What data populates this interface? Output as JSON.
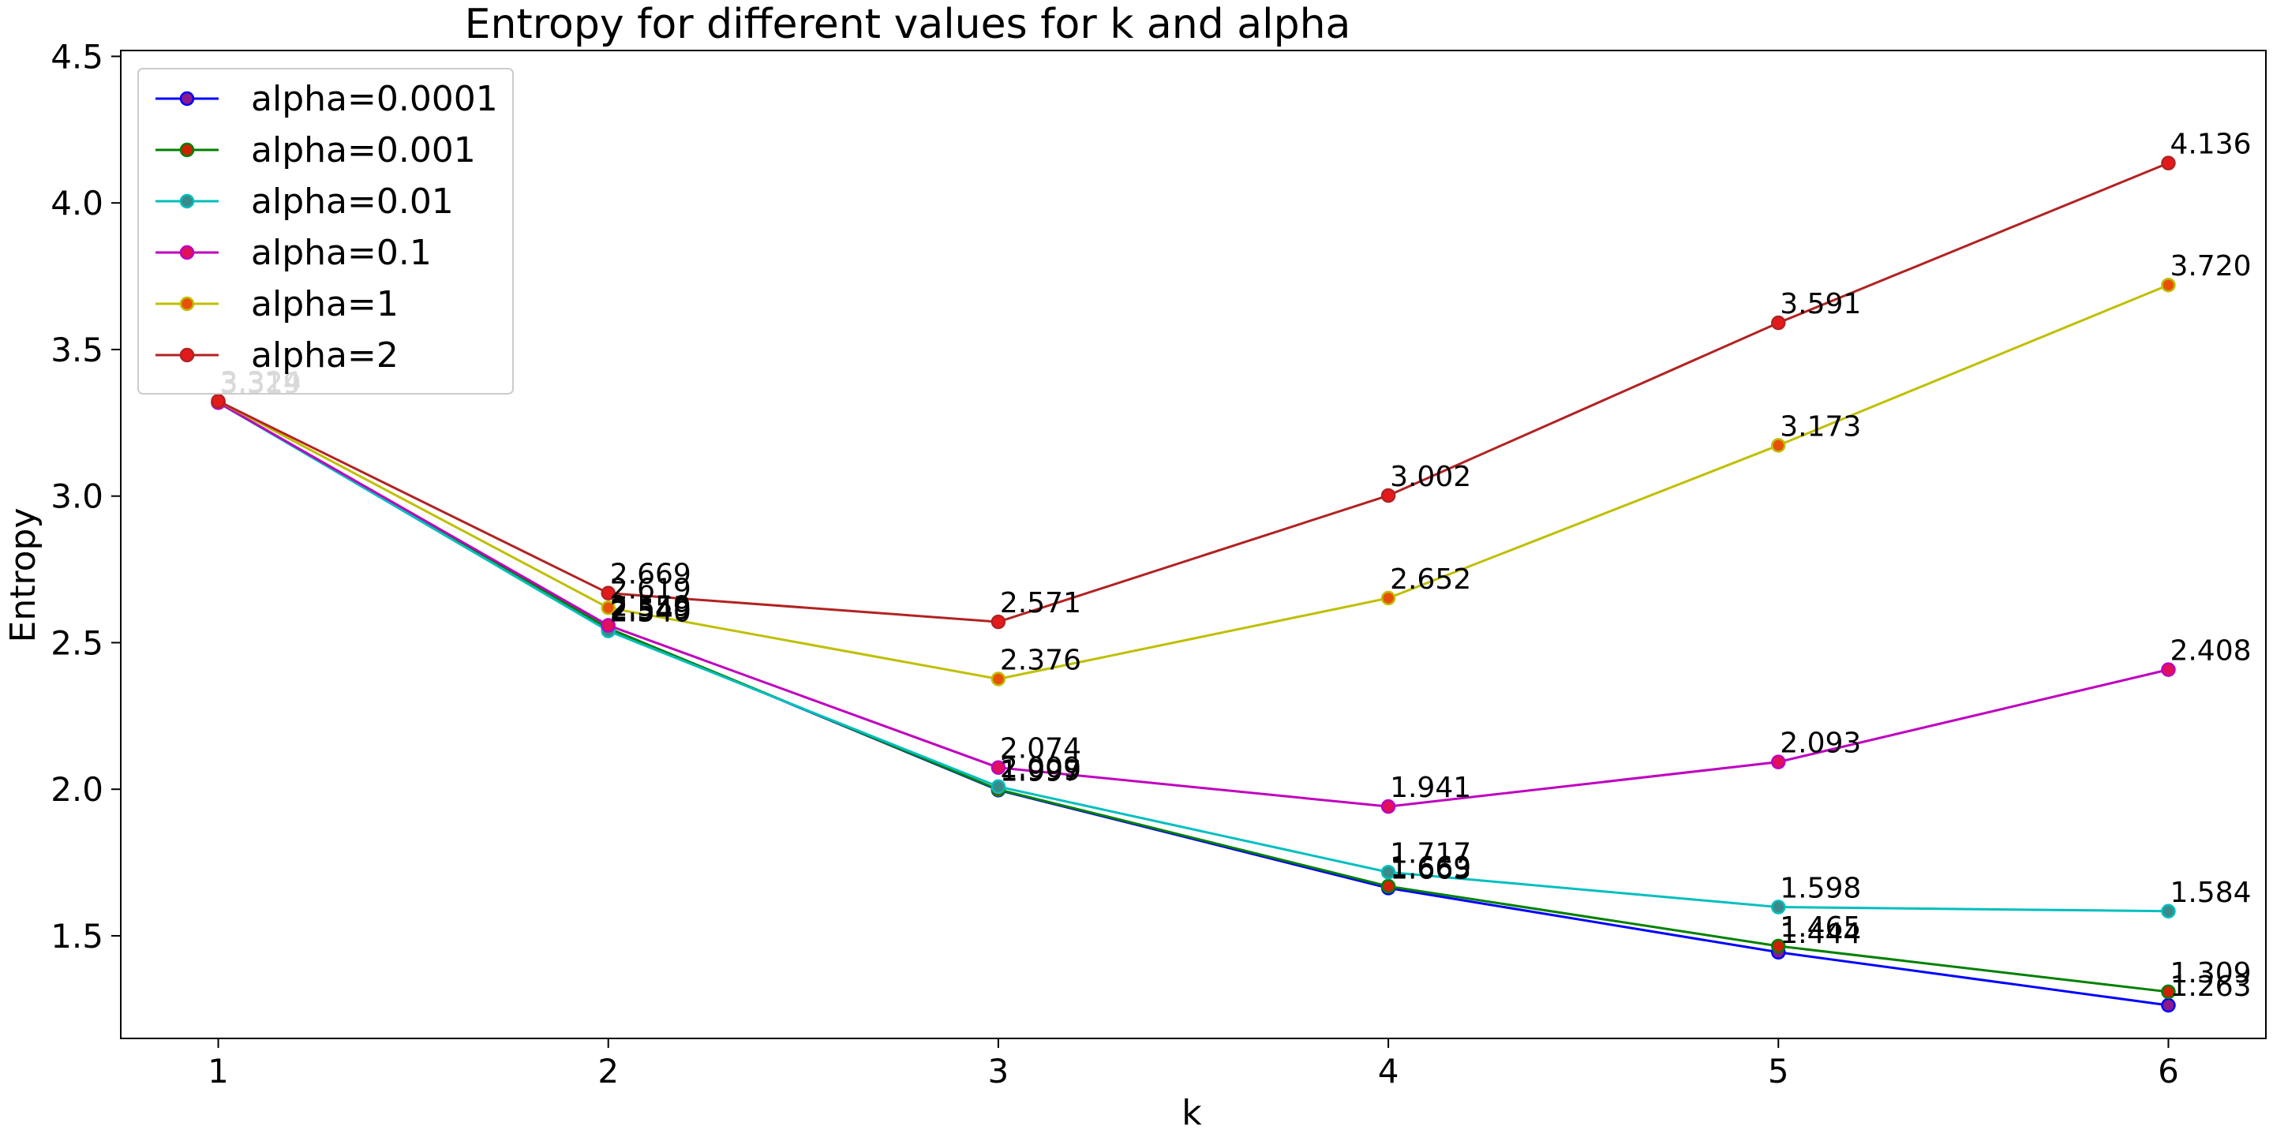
{
  "chart_data": {
    "type": "line",
    "title": "Entropy for different values for k and alpha",
    "xlabel": "k",
    "ylabel": "Entropy",
    "x": [
      1,
      2,
      3,
      4,
      5,
      6
    ],
    "xlim": [
      0.75,
      6.25
    ],
    "ylim": [
      1.15,
      4.52
    ],
    "xticks": [
      1,
      2,
      3,
      4,
      5,
      6
    ],
    "yticks": [
      1.5,
      2.0,
      2.5,
      3.0,
      3.5,
      4.0,
      4.5
    ],
    "ytick_labels": [
      "1.5",
      "2.0",
      "2.5",
      "3.0",
      "3.5",
      "4.0",
      "4.5"
    ],
    "grid": false,
    "legend_position": "top-left",
    "series": [
      {
        "name": "alpha=0.0001",
        "color": "#0000ff",
        "marker_fill": "#8b1a8b",
        "values": [
          3.319,
          2.549,
          1.997,
          1.663,
          1.444,
          1.263
        ],
        "labels": [
          "3.319",
          "2.549",
          "1.997",
          "1.663",
          "1.444",
          "1.263"
        ]
      },
      {
        "name": "alpha=0.001",
        "color": "#008000",
        "marker_fill": "#cc2200",
        "values": [
          3.319,
          2.549,
          1.999,
          1.669,
          1.465,
          1.309
        ],
        "labels": [
          "3.319",
          "2.549",
          "1.999",
          "1.669",
          "1.465",
          "1.309"
        ]
      },
      {
        "name": "alpha=0.01",
        "color": "#00bfbf",
        "marker_fill": "#3a8a8a",
        "values": [
          3.319,
          2.54,
          2.009,
          1.717,
          1.598,
          1.584
        ],
        "labels": [
          "3.319",
          "2.540",
          "2.009",
          "1.717",
          "1.598",
          "1.584"
        ]
      },
      {
        "name": "alpha=0.1",
        "color": "#bf00bf",
        "marker_fill": "#e0105a",
        "values": [
          3.319,
          2.559,
          2.074,
          1.941,
          2.093,
          2.408
        ],
        "labels": [
          "3.319",
          "2.559",
          "2.074",
          "1.941",
          "2.093",
          "2.408"
        ]
      },
      {
        "name": "alpha=1",
        "color": "#bfbf00",
        "marker_fill": "#e8500a",
        "values": [
          3.324,
          2.619,
          2.376,
          2.652,
          3.173,
          3.72
        ],
        "labels": [
          "3.324",
          "2.619",
          "2.376",
          "2.652",
          "3.173",
          "3.720"
        ]
      },
      {
        "name": "alpha=2",
        "color": "#b22222",
        "marker_fill": "#e31a1c",
        "values": [
          3.324,
          2.669,
          2.571,
          3.002,
          3.591,
          4.136
        ],
        "labels": [
          "3.324",
          "2.669",
          "2.571",
          "3.002",
          "3.591",
          "4.136"
        ]
      }
    ]
  }
}
